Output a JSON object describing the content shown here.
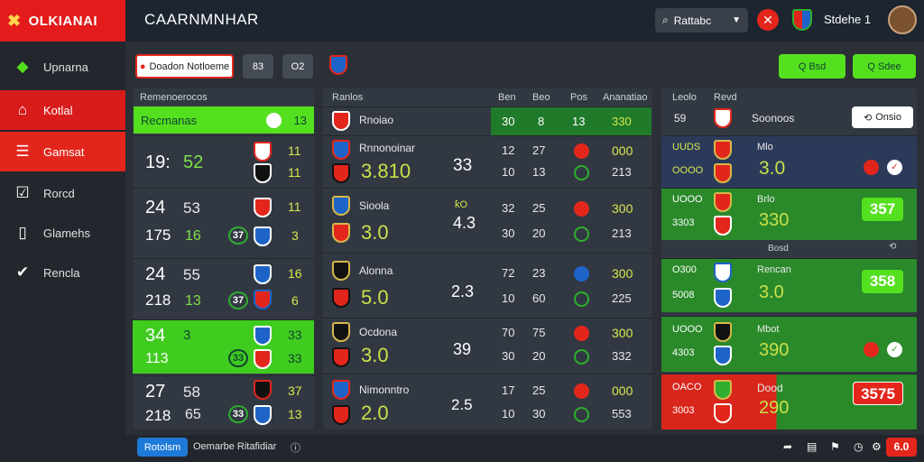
{
  "app": {
    "logo": "OLKIANAI",
    "title": "CAARNMNHAR"
  },
  "sidebar": {
    "items": [
      {
        "label": "Upnarna",
        "icon": "league-logo-icon",
        "active": false
      },
      {
        "label": "Kotlal",
        "icon": "home-icon",
        "active": true
      },
      {
        "label": "Gamsat",
        "icon": "list-icon",
        "active": true
      },
      {
        "label": "Rorcd",
        "icon": "checkbox-icon",
        "active": false
      },
      {
        "label": "Glamehs",
        "icon": "book-icon",
        "active": false
      },
      {
        "label": "Rencla",
        "icon": "check-icon",
        "active": false
      }
    ]
  },
  "header": {
    "search": "Rattabc",
    "user": "Stdehe 1"
  },
  "toolbar": {
    "filter": "Doadon Notloeme",
    "btn_a": "83",
    "btn_b": "O2",
    "btn_green_1": "Q Bsd",
    "btn_green_2": "Q Sdee"
  },
  "left_panel": {
    "title": "Remenoerocos",
    "highlight": {
      "label": "Recmanas",
      "score": "13"
    },
    "rows": [
      {
        "a": "19:",
        "b": "52",
        "c": "11",
        "d": "11",
        "state": "plain"
      },
      {
        "a": "24",
        "b": "53",
        "c": "175",
        "d": "16",
        "e": "37",
        "f": "11",
        "g": "3",
        "state": "plain"
      },
      {
        "a": "24",
        "b": "55",
        "c": "218",
        "d": "13",
        "e": "37",
        "f": "16",
        "g": "6",
        "state": "plain"
      },
      {
        "a": "34",
        "b": "3",
        "c": "113",
        "e": "33",
        "f": "33",
        "g": "33",
        "state": "green"
      },
      {
        "a": "27",
        "b": "58",
        "c": "218",
        "d": "65",
        "e": "33",
        "f": "37",
        "g": "13",
        "state": "plain"
      }
    ]
  },
  "mid_panel": {
    "title": "Ranlos",
    "col1": "Ben",
    "col2": "Beo",
    "col3": "Pos",
    "col4": "Ananatiao",
    "highlight": {
      "name": "Rnoiao",
      "v1": "30",
      "v2": "8",
      "v3": "13",
      "v4": "330"
    },
    "rows": [
      {
        "name": "Rnnonoinar",
        "odds": "3.810",
        "side": "33",
        "v1": "12",
        "v2": "27",
        "v3": "10",
        "v4": "13",
        "r1": "000",
        "r2": "213"
      },
      {
        "name": "Sioola",
        "odds": "3.0",
        "side": "4.3",
        "tag": "ƙO",
        "v1": "32",
        "v2": "25",
        "v3": "30",
        "v4": "20",
        "r1": "300",
        "r2": "213"
      },
      {
        "name": "Alonna",
        "odds": "5.0",
        "side": "2.3",
        "v1": "72",
        "v2": "23",
        "v3": "10",
        "v4": "60",
        "r1": "300",
        "r2": "225"
      },
      {
        "name": "Ocdona",
        "odds": "3.0",
        "side": "39",
        "v1": "70",
        "v2": "75",
        "v3": "30",
        "v4": "20",
        "r1": "300",
        "r2": "332"
      },
      {
        "name": "Nimonntro",
        "odds": "2.0",
        "side": "2.5",
        "v1": "17",
        "v2": "25",
        "v3": "10",
        "v4": "30",
        "r1": "000",
        "r2": "553"
      }
    ]
  },
  "right_panel": {
    "col1": "Leolo",
    "col2": "Revd",
    "top": {
      "a": "59",
      "name": "Soonoos",
      "button": "Onsio"
    },
    "sub": "Bosd",
    "rows": [
      {
        "t1": "UUDS",
        "t2": "OOOO",
        "name": "Mlo",
        "odds": "3.0",
        "chip": "",
        "state": "blue"
      },
      {
        "t1": "UOOO",
        "t2": "3303",
        "name": "Brlo",
        "odds": "330",
        "chip": "357",
        "state": "green"
      },
      {
        "t1": "O300",
        "t2": "5008",
        "name": "Rencan",
        "odds": "3.0",
        "chip": "358",
        "state": "green"
      },
      {
        "t1": "UOOO",
        "t2": "4303",
        "name": "Mbot",
        "odds": "390",
        "chip": "",
        "state": "green"
      },
      {
        "t1": "OACO",
        "t2": "3003",
        "name": "Dood",
        "odds": "290",
        "chip": "3575",
        "state": "red"
      }
    ]
  },
  "footer": {
    "button": "Rotolsm",
    "text": "Oemarbe  Ritafidiar",
    "badge": "6.0"
  }
}
